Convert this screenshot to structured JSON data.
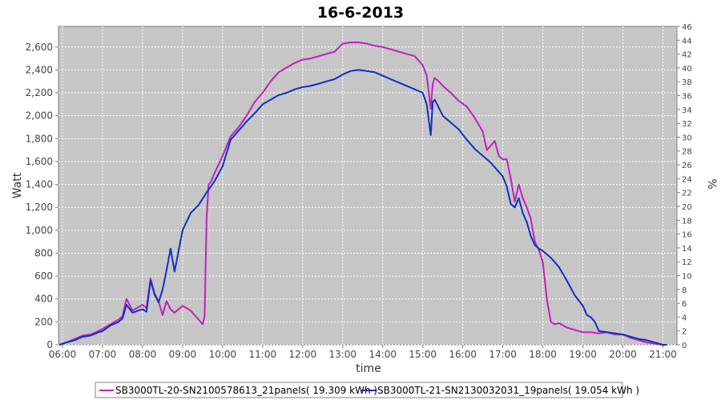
{
  "chart_data": {
    "type": "line",
    "title": "16-6-2013",
    "xlabel": "time",
    "ylabel": "Watt",
    "y2label": "%",
    "xlim": [
      5.9,
      21.35
    ],
    "ylim": [
      0,
      2780
    ],
    "y2lim": [
      0,
      46
    ],
    "x_ticks": [
      {
        "v": 6,
        "label": "06:00"
      },
      {
        "v": 7,
        "label": "07:00"
      },
      {
        "v": 8,
        "label": "08:00"
      },
      {
        "v": 9,
        "label": "09:00"
      },
      {
        "v": 10,
        "label": "10:00"
      },
      {
        "v": 11,
        "label": "11:00"
      },
      {
        "v": 12,
        "label": "12:00"
      },
      {
        "v": 13,
        "label": "13:00"
      },
      {
        "v": 14,
        "label": "14:00"
      },
      {
        "v": 15,
        "label": "15:00"
      },
      {
        "v": 16,
        "label": "16:00"
      },
      {
        "v": 17,
        "label": "17:00"
      },
      {
        "v": 18,
        "label": "18:00"
      },
      {
        "v": 19,
        "label": "19:00"
      },
      {
        "v": 20,
        "label": "20:00"
      },
      {
        "v": 21,
        "label": "21:00"
      }
    ],
    "y_ticks": [
      {
        "v": 0,
        "label": "0"
      },
      {
        "v": 200,
        "label": "200"
      },
      {
        "v": 400,
        "label": "400"
      },
      {
        "v": 600,
        "label": "600"
      },
      {
        "v": 800,
        "label": "800"
      },
      {
        "v": 1000,
        "label": "1,000"
      },
      {
        "v": 1200,
        "label": "1,200"
      },
      {
        "v": 1400,
        "label": "1,400"
      },
      {
        "v": 1600,
        "label": "1,600"
      },
      {
        "v": 1800,
        "label": "1,800"
      },
      {
        "v": 2000,
        "label": "2,000"
      },
      {
        "v": 2200,
        "label": "2,200"
      },
      {
        "v": 2400,
        "label": "2,400"
      },
      {
        "v": 2600,
        "label": "2,600"
      }
    ],
    "y2_ticks": [
      0,
      2,
      4,
      6,
      8,
      10,
      12,
      14,
      16,
      18,
      20,
      22,
      24,
      26,
      28,
      30,
      32,
      34,
      36,
      38,
      40,
      42,
      44,
      46
    ],
    "grid": true,
    "legend_position": "bottom",
    "series": [
      {
        "name": "SB3000TL-20-SN2100578613_21panels( 19.309 kWh )",
        "color": "#c020c0",
        "x": [
          5.92,
          6.1,
          6.3,
          6.5,
          6.7,
          6.9,
          7.0,
          7.2,
          7.4,
          7.5,
          7.6,
          7.75,
          7.9,
          8.0,
          8.1,
          8.2,
          8.3,
          8.4,
          8.5,
          8.6,
          8.7,
          8.8,
          9.0,
          9.2,
          9.4,
          9.5,
          9.55,
          9.6,
          9.65,
          9.7,
          9.8,
          10.0,
          10.2,
          10.4,
          10.6,
          10.8,
          11.0,
          11.2,
          11.4,
          11.6,
          11.8,
          12.0,
          12.2,
          12.4,
          12.6,
          12.8,
          13.0,
          13.2,
          13.4,
          13.6,
          13.8,
          14.0,
          14.2,
          14.4,
          14.6,
          14.8,
          15.0,
          15.1,
          15.2,
          15.25,
          15.3,
          15.4,
          15.5,
          15.7,
          15.9,
          16.1,
          16.3,
          16.5,
          16.6,
          16.8,
          16.9,
          17.0,
          17.1,
          17.2,
          17.3,
          17.4,
          17.5,
          17.6,
          17.7,
          17.8,
          17.9,
          18.0,
          18.1,
          18.2,
          18.3,
          18.4,
          18.6,
          18.8,
          19.0,
          19.2,
          19.4,
          19.6,
          19.8,
          20.0,
          20.2,
          20.4,
          20.6,
          20.8,
          21.0,
          21.1
        ],
        "y": [
          0,
          20,
          50,
          80,
          90,
          120,
          140,
          180,
          220,
          250,
          400,
          300,
          330,
          350,
          320,
          580,
          450,
          380,
          260,
          380,
          310,
          280,
          340,
          300,
          220,
          180,
          250,
          1100,
          1400,
          1420,
          1500,
          1650,
          1820,
          1900,
          2000,
          2120,
          2200,
          2300,
          2380,
          2420,
          2460,
          2490,
          2500,
          2520,
          2540,
          2560,
          2630,
          2640,
          2640,
          2630,
          2610,
          2600,
          2580,
          2560,
          2540,
          2520,
          2440,
          2350,
          2060,
          2280,
          2330,
          2300,
          2260,
          2200,
          2130,
          2080,
          1980,
          1860,
          1700,
          1780,
          1650,
          1620,
          1620,
          1450,
          1250,
          1400,
          1280,
          1200,
          1100,
          900,
          830,
          720,
          400,
          200,
          180,
          190,
          150,
          130,
          110,
          110,
          100,
          110,
          90,
          90,
          60,
          40,
          20,
          10,
          0,
          0
        ],
        "total": "19.309 kWh"
      },
      {
        "name": "SB3000TL-21-SN2130032031_19panels( 19.054 kWh )",
        "color": "#1030c0",
        "x": [
          5.92,
          6.1,
          6.3,
          6.5,
          6.7,
          6.9,
          7.0,
          7.2,
          7.4,
          7.5,
          7.6,
          7.75,
          7.9,
          8.0,
          8.1,
          8.2,
          8.3,
          8.4,
          8.5,
          8.6,
          8.7,
          8.8,
          9.0,
          9.2,
          9.4,
          9.6,
          9.7,
          9.8,
          10.0,
          10.2,
          10.4,
          10.6,
          10.8,
          11.0,
          11.2,
          11.4,
          11.6,
          11.8,
          12.0,
          12.2,
          12.4,
          12.6,
          12.8,
          13.0,
          13.2,
          13.4,
          13.6,
          13.8,
          14.0,
          14.2,
          14.4,
          14.6,
          14.8,
          15.0,
          15.1,
          15.2,
          15.25,
          15.3,
          15.4,
          15.5,
          15.7,
          15.9,
          16.1,
          16.3,
          16.5,
          16.7,
          16.9,
          17.0,
          17.1,
          17.2,
          17.3,
          17.4,
          17.5,
          17.6,
          17.7,
          17.8,
          17.9,
          18.0,
          18.2,
          18.4,
          18.6,
          18.8,
          19.0,
          19.1,
          19.2,
          19.3,
          19.4,
          19.6,
          19.8,
          20.0,
          20.2,
          20.4,
          20.6,
          20.8,
          21.0,
          21.1
        ],
        "y": [
          0,
          20,
          40,
          70,
          80,
          110,
          120,
          170,
          200,
          230,
          350,
          280,
          300,
          310,
          290,
          560,
          440,
          370,
          480,
          650,
          840,
          640,
          1000,
          1150,
          1220,
          1330,
          1380,
          1430,
          1560,
          1790,
          1870,
          1950,
          2020,
          2100,
          2140,
          2180,
          2200,
          2230,
          2250,
          2260,
          2280,
          2300,
          2320,
          2360,
          2390,
          2400,
          2390,
          2380,
          2350,
          2320,
          2290,
          2260,
          2230,
          2200,
          2100,
          1830,
          2120,
          2140,
          2070,
          2000,
          1940,
          1880,
          1790,
          1710,
          1650,
          1590,
          1510,
          1470,
          1380,
          1230,
          1200,
          1280,
          1150,
          1070,
          950,
          870,
          840,
          820,
          760,
          680,
          560,
          430,
          340,
          260,
          240,
          200,
          120,
          110,
          100,
          90,
          70,
          50,
          40,
          20,
          0,
          0
        ],
        "total": "19.054 kWh"
      }
    ]
  }
}
